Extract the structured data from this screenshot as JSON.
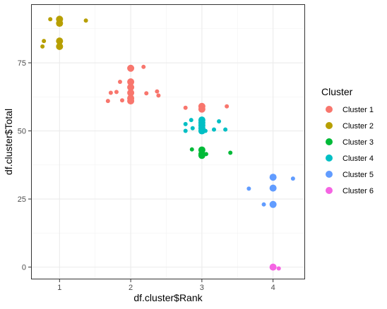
{
  "chart_data": {
    "type": "scatter",
    "xlabel": "df.cluster$Rank",
    "ylabel": "df.cluster$Total",
    "xlim": [
      0.6,
      4.45
    ],
    "ylim": [
      -4.5,
      96.5
    ],
    "x_ticks": [
      1,
      2,
      3,
      4
    ],
    "y_ticks": [
      0,
      25,
      50,
      75
    ],
    "grid": true,
    "legend": {
      "title": "Cluster",
      "placement": "right"
    },
    "series": [
      {
        "name": "Cluster 1",
        "color": "#F8766D",
        "points": [
          {
            "x": 2,
            "y": 73,
            "size": "large"
          },
          {
            "x": 2,
            "y": 68,
            "size": "large"
          },
          {
            "x": 2,
            "y": 66,
            "size": "large"
          },
          {
            "x": 2,
            "y": 64,
            "size": "large"
          },
          {
            "x": 2,
            "y": 62,
            "size": "large"
          },
          {
            "x": 2,
            "y": 61,
            "size": "large"
          },
          {
            "x": 2.18,
            "y": 73.5,
            "size": "small"
          },
          {
            "x": 1.85,
            "y": 68,
            "size": "small"
          },
          {
            "x": 1.72,
            "y": 64,
            "size": "small"
          },
          {
            "x": 1.8,
            "y": 64.3,
            "size": "small"
          },
          {
            "x": 2.22,
            "y": 63.8,
            "size": "small"
          },
          {
            "x": 2.37,
            "y": 64.5,
            "size": "small"
          },
          {
            "x": 2.39,
            "y": 63,
            "size": "small"
          },
          {
            "x": 1.68,
            "y": 61,
            "size": "small"
          },
          {
            "x": 1.88,
            "y": 61.2,
            "size": "small"
          },
          {
            "x": 3,
            "y": 59,
            "size": "large"
          },
          {
            "x": 3,
            "y": 58,
            "size": "large"
          },
          {
            "x": 2.77,
            "y": 58.5,
            "size": "small"
          },
          {
            "x": 3.35,
            "y": 59,
            "size": "small"
          }
        ]
      },
      {
        "name": "Cluster 2",
        "color": "#B79F00",
        "points": [
          {
            "x": 1,
            "y": 91,
            "size": "large"
          },
          {
            "x": 1,
            "y": 89.5,
            "size": "large"
          },
          {
            "x": 1,
            "y": 83,
            "size": "large"
          },
          {
            "x": 1,
            "y": 81,
            "size": "large"
          },
          {
            "x": 0.87,
            "y": 91,
            "size": "small"
          },
          {
            "x": 1.37,
            "y": 90.5,
            "size": "small"
          },
          {
            "x": 0.78,
            "y": 83,
            "size": "small"
          },
          {
            "x": 0.76,
            "y": 81,
            "size": "small"
          }
        ]
      },
      {
        "name": "Cluster 3",
        "color": "#00BA38",
        "points": [
          {
            "x": 3,
            "y": 43,
            "size": "large"
          },
          {
            "x": 3,
            "y": 41.5,
            "size": "large"
          },
          {
            "x": 3,
            "y": 41,
            "size": "large"
          },
          {
            "x": 2.86,
            "y": 43.2,
            "size": "small"
          },
          {
            "x": 3.06,
            "y": 41.5,
            "size": "small"
          },
          {
            "x": 3.4,
            "y": 42,
            "size": "small"
          }
        ]
      },
      {
        "name": "Cluster 4",
        "color": "#00BFC4",
        "points": [
          {
            "x": 3,
            "y": 54,
            "size": "large"
          },
          {
            "x": 3,
            "y": 53,
            "size": "large"
          },
          {
            "x": 3,
            "y": 52,
            "size": "large"
          },
          {
            "x": 3,
            "y": 51,
            "size": "large"
          },
          {
            "x": 3,
            "y": 50,
            "size": "large"
          },
          {
            "x": 2.85,
            "y": 54,
            "size": "small"
          },
          {
            "x": 2.77,
            "y": 52.5,
            "size": "small"
          },
          {
            "x": 2.87,
            "y": 51,
            "size": "small"
          },
          {
            "x": 2.77,
            "y": 50,
            "size": "small"
          },
          {
            "x": 3.24,
            "y": 53.5,
            "size": "small"
          },
          {
            "x": 3.17,
            "y": 50.5,
            "size": "small"
          },
          {
            "x": 3.33,
            "y": 50.5,
            "size": "small"
          },
          {
            "x": 3.05,
            "y": 50,
            "size": "small"
          }
        ]
      },
      {
        "name": "Cluster 5",
        "color": "#619CFF",
        "points": [
          {
            "x": 4,
            "y": 33,
            "size": "large"
          },
          {
            "x": 4,
            "y": 29,
            "size": "large"
          },
          {
            "x": 4,
            "y": 23,
            "size": "large"
          },
          {
            "x": 4.28,
            "y": 32.5,
            "size": "small"
          },
          {
            "x": 3.66,
            "y": 28.8,
            "size": "small"
          },
          {
            "x": 3.87,
            "y": 23,
            "size": "small"
          }
        ]
      },
      {
        "name": "Cluster 6",
        "color": "#F564E3",
        "points": [
          {
            "x": 4,
            "y": 0,
            "size": "large"
          },
          {
            "x": 4.08,
            "y": -0.5,
            "size": "small"
          }
        ]
      }
    ]
  }
}
